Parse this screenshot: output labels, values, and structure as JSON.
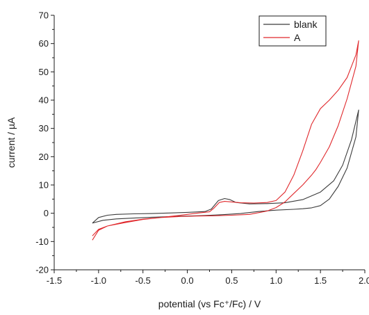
{
  "chart_data": {
    "type": "line",
    "title": "",
    "xlabel": "potential (vs Fc⁺/Fc) / V",
    "ylabel": "current / µA",
    "xlim": [
      -1.5,
      2.0
    ],
    "ylim": [
      -20,
      70
    ],
    "x_ticks": [
      "-1.5",
      "-1.0",
      "-0.5",
      "0.0",
      "0.5",
      "1.0",
      "1.5",
      "2.0"
    ],
    "y_ticks": [
      "-20",
      "-10",
      "0",
      "10",
      "20",
      "30",
      "40",
      "50",
      "60",
      "70"
    ],
    "grid": false,
    "legend_position": "top-right",
    "series": [
      {
        "name": "blank",
        "color": "#3a3a3a",
        "x": [
          -1.07,
          -1.0,
          -0.9,
          -0.8,
          -0.6,
          -0.4,
          -0.2,
          0.0,
          0.2,
          0.27,
          0.35,
          0.42,
          0.48,
          0.55,
          0.7,
          0.9,
          1.1,
          1.3,
          1.5,
          1.65,
          1.75,
          1.85,
          1.93,
          1.9,
          1.8,
          1.7,
          1.6,
          1.5,
          1.4,
          1.3,
          1.2,
          1.0,
          0.8,
          0.6,
          0.4,
          0.2,
          0.0,
          -0.2,
          -0.4,
          -0.6,
          -0.8,
          -0.95,
          -1.07
        ],
        "y": [
          -3.5,
          -1.5,
          -0.7,
          -0.4,
          -0.2,
          -0.1,
          0.1,
          0.3,
          0.6,
          1.5,
          4.5,
          5.2,
          4.8,
          3.8,
          3.3,
          3.4,
          3.7,
          4.8,
          7.5,
          11.5,
          17.0,
          26.0,
          36.5,
          27.0,
          16.0,
          9.5,
          5.0,
          2.7,
          1.9,
          1.6,
          1.4,
          1.1,
          0.6,
          -0.1,
          -0.5,
          -0.8,
          -1.0,
          -1.2,
          -1.4,
          -1.7,
          -2.0,
          -2.5,
          -3.5
        ]
      },
      {
        "name": "A",
        "color": "#e0282c",
        "x": [
          -1.07,
          -1.0,
          -0.9,
          -0.7,
          -0.5,
          -0.3,
          -0.1,
          0.1,
          0.25,
          0.3,
          0.36,
          0.42,
          0.5,
          0.6,
          0.75,
          0.9,
          1.0,
          1.1,
          1.2,
          1.3,
          1.4,
          1.5,
          1.6,
          1.7,
          1.8,
          1.9,
          1.93,
          1.9,
          1.8,
          1.7,
          1.6,
          1.5,
          1.45,
          1.4,
          1.3,
          1.2,
          1.1,
          1.0,
          0.9,
          0.7,
          0.5,
          0.3,
          0.1,
          -0.1,
          -0.3,
          -0.5,
          -0.7,
          -0.9,
          -1.0,
          -1.07
        ],
        "y": [
          -9.5,
          -6.0,
          -4.5,
          -3.3,
          -2.2,
          -1.5,
          -0.8,
          0.0,
          0.5,
          1.8,
          3.8,
          4.2,
          4.0,
          3.7,
          3.6,
          3.8,
          4.5,
          7.5,
          13.5,
          22.0,
          31.5,
          37.0,
          40.0,
          43.5,
          48.0,
          56.0,
          61.0,
          52.0,
          40.5,
          31.0,
          23.5,
          18.0,
          15.5,
          13.5,
          10.0,
          7.0,
          4.0,
          2.0,
          0.8,
          -0.4,
          -0.7,
          -0.9,
          -1.0,
          -1.2,
          -1.5,
          -2.1,
          -3.0,
          -4.5,
          -5.7,
          -8.0
        ]
      }
    ]
  }
}
